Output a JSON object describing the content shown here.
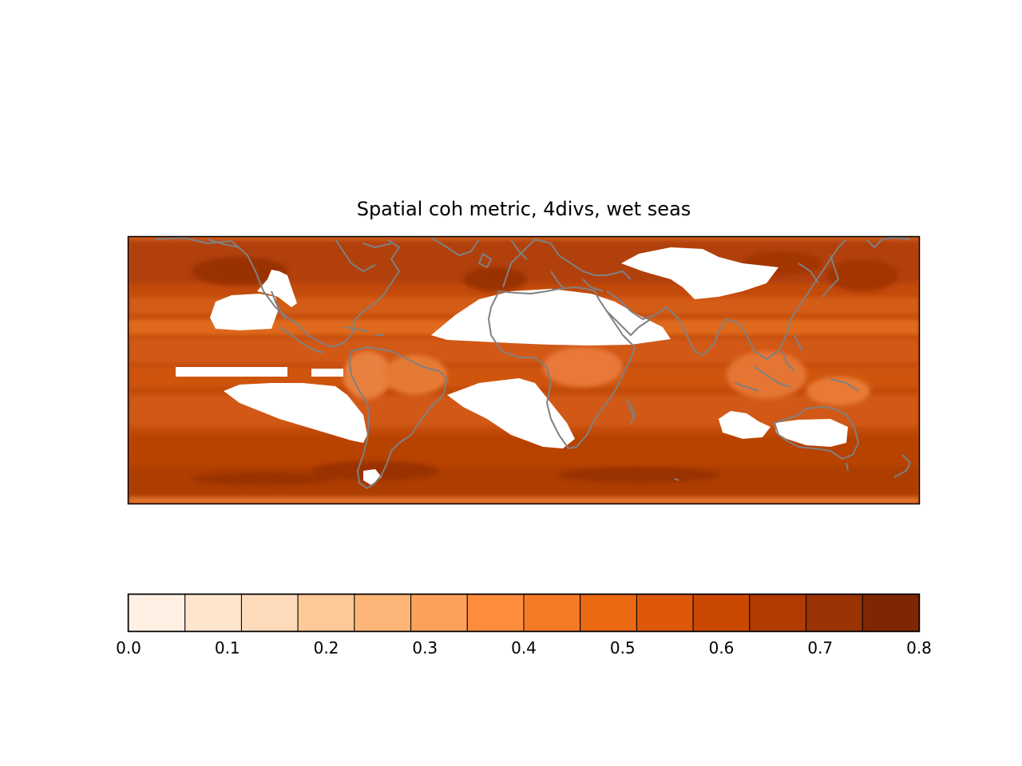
{
  "title": "Spatial coh metric, 4divs, wet seas",
  "colorbar": {
    "ticks": [
      "0.0",
      "0.1",
      "0.2",
      "0.3",
      "0.4",
      "0.5",
      "0.6",
      "0.7",
      "0.8"
    ],
    "range": [
      0.0,
      0.8
    ],
    "step": 0.05,
    "colors": [
      "#fff0e3",
      "#fee6ce",
      "#fddbba",
      "#fdc997",
      "#fdb677",
      "#fda15a",
      "#fd8d3c",
      "#f67a26",
      "#ec6914",
      "#de570b",
      "#cb4803",
      "#b13b03",
      "#9a3203",
      "#7f2704"
    ],
    "colormap": "Oranges"
  },
  "map": {
    "projection": "cylindrical",
    "coastline_color": "#808080",
    "missing_color": "#ffffff",
    "dominant_value_range": [
      0.55,
      0.7
    ]
  }
}
